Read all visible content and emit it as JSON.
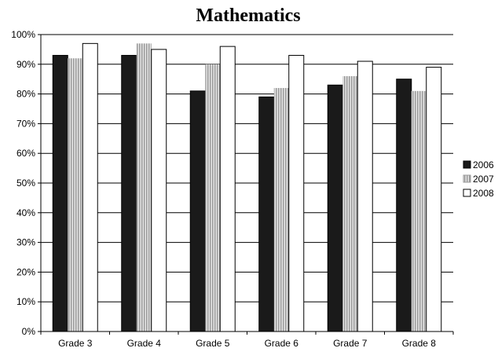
{
  "chart_data": {
    "type": "bar",
    "title": "Mathematics",
    "xlabel": "",
    "ylabel": "",
    "categories": [
      "Grade 3",
      "Grade 4",
      "Grade 5",
      "Grade 6",
      "Grade 7",
      "Grade 8"
    ],
    "series": [
      {
        "name": "2006",
        "values": [
          93,
          93,
          81,
          79,
          83,
          85
        ],
        "color": "#1a1a1a",
        "fill": "solid-dark"
      },
      {
        "name": "2007",
        "values": [
          92,
          97,
          90,
          82,
          86,
          81
        ],
        "color": "#b8b8b8",
        "fill": "hatched-gray"
      },
      {
        "name": "2008",
        "values": [
          97,
          95,
          96,
          93,
          91,
          89
        ],
        "color": "#ffffff",
        "fill": "white"
      }
    ],
    "ylim": [
      0,
      100
    ],
    "yticks": [
      "0%",
      "10%",
      "20%",
      "30%",
      "40%",
      "50%",
      "60%",
      "70%",
      "80%",
      "90%",
      "100%"
    ],
    "grid": true,
    "legend_position": "right"
  }
}
